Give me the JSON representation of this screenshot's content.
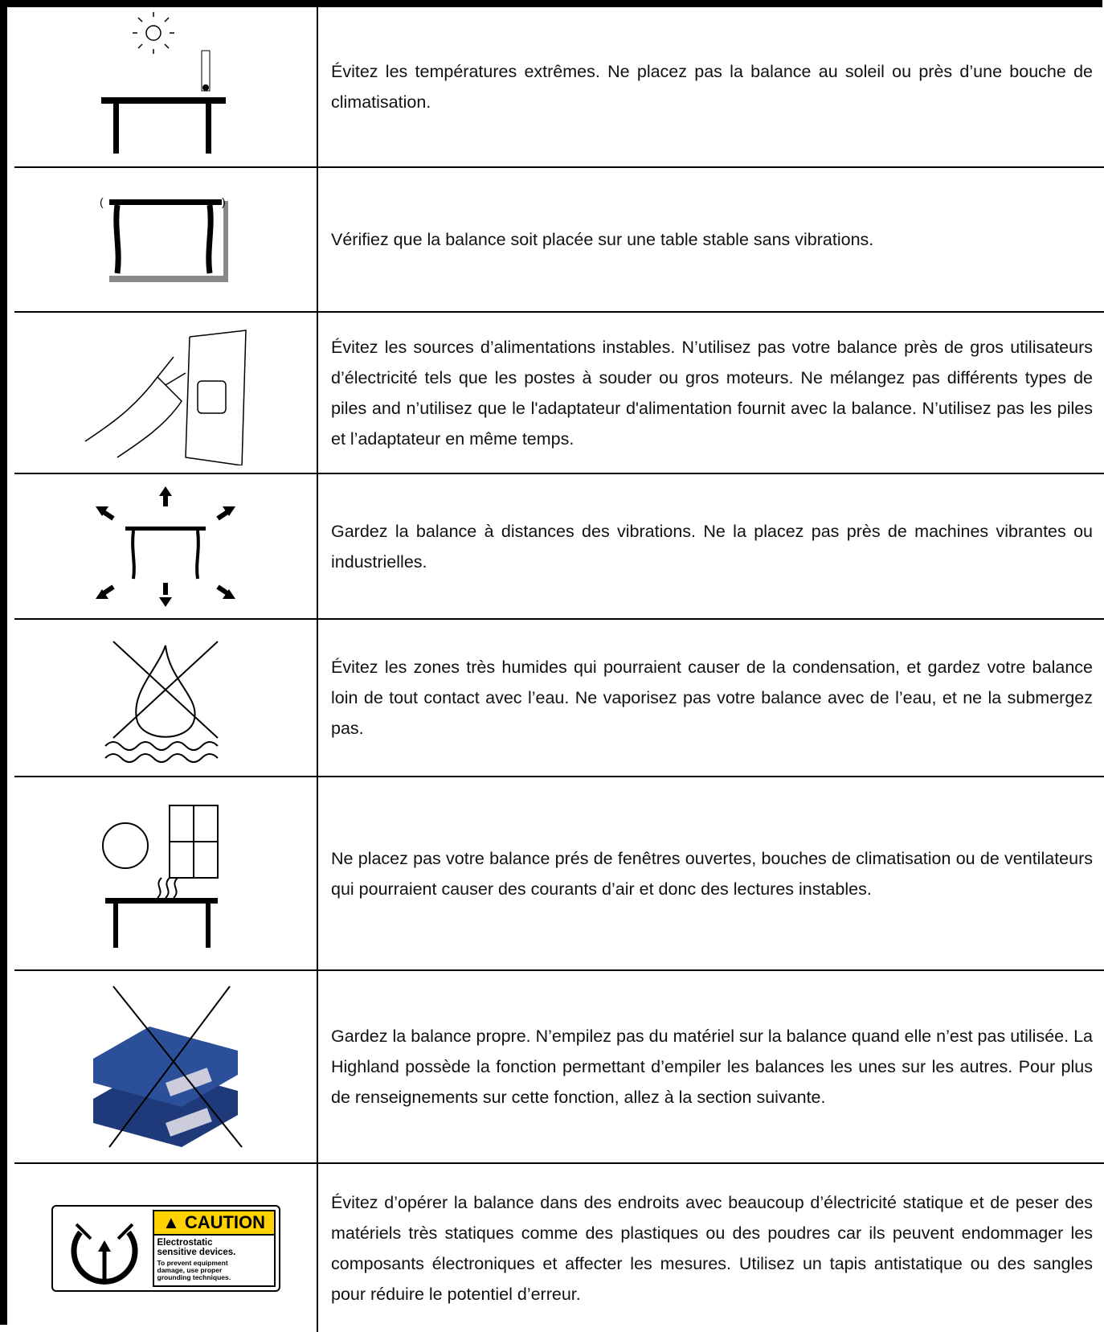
{
  "rows": [
    {
      "text": "Évitez les températures extrêmes. Ne placez pas la balance  au soleil ou près d’une bouche de climatisation."
    },
    {
      "text": "Vérifiez que la balance soit placée sur une table stable sans vibrations."
    },
    {
      "text": "Évitez les sources d’alimentations instables. N’utilisez pas votre balance près de gros utilisateurs d’électricité tels que les postes à souder ou gros moteurs. Ne mélangez pas différents types de piles and n’utilisez que le l'adaptateur d'alimentation fournit avec la balance. N’utilisez pas les piles et l’adaptateur en même temps."
    },
    {
      "text": "Gardez la balance à distances des vibrations. Ne la placez pas près de machines vibrantes ou industrielles."
    },
    {
      "text": "Évitez les zones très humides qui pourraient causer de la condensation, et gardez votre balance loin de tout contact avec l’eau. Ne vaporisez pas votre balance avec de l’eau, et ne la submergez pas."
    },
    {
      "text": "Ne placez pas votre balance prés de fenêtres ouvertes, bouches de climatisation ou de ventilateurs qui pourraient causer des courants d’air et donc des lectures instables."
    },
    {
      "text": "Gardez la balance propre. N’empilez pas du matériel sur la balance quand elle n’est pas utilisée. La Highland possède la fonction permettant d’empiler les balances les unes sur les autres. Pour plus de renseignements sur cette fonction, allez à la section suivante."
    },
    {
      "text": "Évitez d’opérer la balance dans des endroits avec beaucoup d’électricité statique et de peser des matériels très statiques comme des plastiques ou des poudres car ils peuvent endommager les composants électroniques et affecter les mesures. Utilisez un tapis antistatique ou des sangles pour réduire le potentiel d’erreur."
    }
  ],
  "caution": {
    "heading": "CAUTION",
    "lines": [
      "Electrostatic",
      "sensitive devices."
    ],
    "small": [
      "To prevent equipment",
      "damage, use proper",
      "grounding techniques."
    ]
  }
}
